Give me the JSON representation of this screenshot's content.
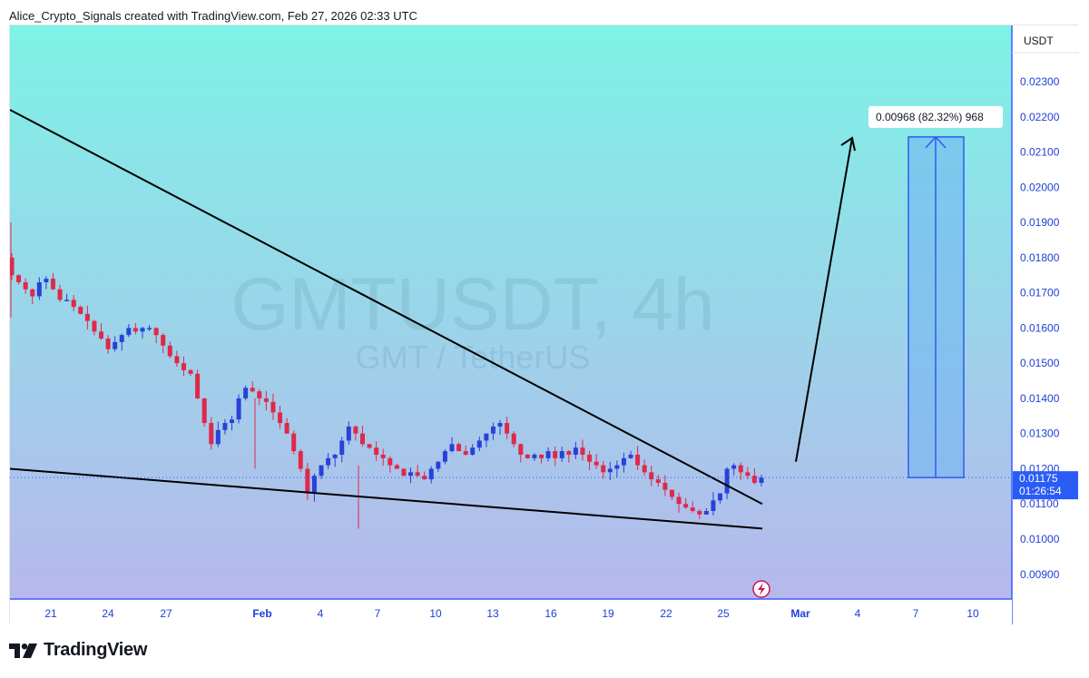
{
  "header": {
    "attribution": "Alice_Crypto_Signals created with TradingView.com, Feb 27, 2026 02:33 UTC"
  },
  "footer": {
    "brand": "TradingView",
    "logo_icon": "tradingview-logo-icon"
  },
  "watermark": {
    "symbol": "GMTUSDT, 4h",
    "description": "GMT / TetherUS"
  },
  "colors": {
    "bg_top": "#7ef2e6",
    "bg_bottom": "#b7b8ec",
    "up_candle": "#2841d9",
    "down_candle": "#e0284a",
    "axis_line": "#3b5cff",
    "axis_text": "#1e3fd6",
    "trendline": "#000000",
    "measure_fill": "#6fb3f0",
    "measure_line": "#2a5cf5"
  },
  "chart_data": {
    "type": "candlestick",
    "symbol": "GMTUSDT",
    "interval": "4h",
    "currency_label": "USDT",
    "y_ticks": [
      "0.00900",
      "0.01000",
      "0.01100",
      "0.01200",
      "0.01300",
      "0.01400",
      "0.01500",
      "0.01600",
      "0.01700",
      "0.01800",
      "0.01900",
      "0.02000",
      "0.02100",
      "0.02200",
      "0.02300"
    ],
    "y_range": [
      0.0085,
      0.0246
    ],
    "x_ticks": [
      "21",
      "24",
      "27",
      "Feb",
      "4",
      "7",
      "10",
      "13",
      "16",
      "19",
      "22",
      "25",
      "Mar",
      "4",
      "7",
      "10"
    ],
    "last_price": "0.01175",
    "countdown": "01:26:54",
    "close_path": [
      0.0175,
      0.0173,
      0.0171,
      0.0169,
      0.0173,
      0.0174,
      0.0171,
      0.0168,
      0.0168,
      0.0166,
      0.0164,
      0.0162,
      0.0159,
      0.0157,
      0.0154,
      0.0156,
      0.0158,
      0.016,
      0.0159,
      0.016,
      0.016,
      0.0158,
      0.0155,
      0.0152,
      0.015,
      0.0148,
      0.0147,
      0.014,
      0.0133,
      0.0127,
      0.0131,
      0.0133,
      0.0134,
      0.014,
      0.0143,
      0.0142,
      0.014,
      0.0139,
      0.0136,
      0.0133,
      0.013,
      0.0125,
      0.012,
      0.0113,
      0.0118,
      0.0121,
      0.0123,
      0.0124,
      0.0128,
      0.0132,
      0.013,
      0.0127,
      0.0126,
      0.0124,
      0.0123,
      0.0121,
      0.012,
      0.0118,
      0.0119,
      0.0118,
      0.0117,
      0.012,
      0.0122,
      0.0125,
      0.0127,
      0.0125,
      0.0124,
      0.0126,
      0.0128,
      0.013,
      0.0132,
      0.0133,
      0.013,
      0.0127,
      0.0124,
      0.0123,
      0.0124,
      0.0123,
      0.0125,
      0.0123,
      0.0125,
      0.0124,
      0.0126,
      0.0124,
      0.0122,
      0.0121,
      0.0119,
      0.012,
      0.0121,
      0.0123,
      0.0124,
      0.0121,
      0.0119,
      0.0117,
      0.0116,
      0.0114,
      0.0112,
      0.011,
      0.0109,
      0.0108,
      0.0107,
      0.0108,
      0.0111,
      0.0113,
      0.012,
      0.0121,
      0.0119,
      0.0118,
      0.0116,
      0.01175
    ],
    "annotations": {
      "measure_label": "0.00968 (82.32%) 968",
      "measure_from": 0.01175,
      "measure_to": 0.02143,
      "upper_trendline": [
        [
          0,
          0.0222
        ],
        [
          829,
          0.011
        ]
      ],
      "lower_trendline": [
        [
          0,
          0.012
        ],
        [
          829,
          0.0103
        ]
      ],
      "projection_arrow": [
        [
          866,
          0.0122
        ],
        [
          928,
          0.0214
        ]
      ]
    }
  }
}
